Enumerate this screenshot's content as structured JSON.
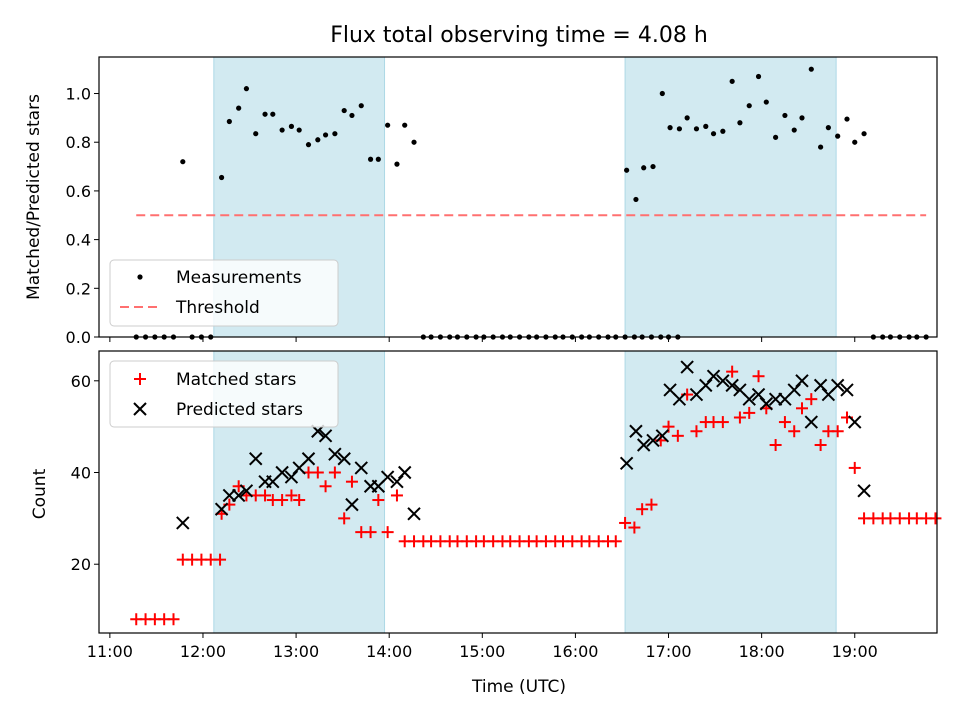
{
  "chart_data": [
    {
      "type": "scatter",
      "title": "Flux total observing time = 4.08 h",
      "xlabel": "",
      "ylabel": "Matched/Predicted stars",
      "xlim": [
        "10:53",
        "19:53"
      ],
      "ylim": [
        0,
        1.15
      ],
      "x_ticks": [
        "11:00",
        "12:00",
        "13:00",
        "14:00",
        "15:00",
        "16:00",
        "17:00",
        "18:00",
        "19:00"
      ],
      "y_ticks": [
        "0.0",
        "0.2",
        "0.4",
        "0.6",
        "0.8",
        "1.0"
      ],
      "grid": false,
      "legend_position": "lower-left",
      "shaded_intervals": [
        [
          "12:07",
          "13:57"
        ],
        [
          "16:32",
          "18:48"
        ]
      ],
      "series": [
        {
          "name": "Measurements",
          "marker": "dot",
          "color": "#000000",
          "points": [
            [
              "11:17",
              0
            ],
            [
              "11:23",
              0
            ],
            [
              "11:29",
              0
            ],
            [
              "11:35",
              0
            ],
            [
              "11:41",
              0
            ],
            [
              "11:47",
              0.72
            ],
            [
              "11:53",
              0
            ],
            [
              "11:59",
              0
            ],
            [
              "12:05",
              0
            ],
            [
              "12:12",
              0.655
            ],
            [
              "12:17",
              0.885
            ],
            [
              "12:23",
              0.94
            ],
            [
              "12:28",
              1.02
            ],
            [
              "12:34",
              0.835
            ],
            [
              "12:40",
              0.915
            ],
            [
              "12:45",
              0.915
            ],
            [
              "12:51",
              0.85
            ],
            [
              "12:57",
              0.865
            ],
            [
              "13:02",
              0.85
            ],
            [
              "13:08",
              0.79
            ],
            [
              "13:14",
              0.81
            ],
            [
              "13:19",
              0.83
            ],
            [
              "13:25",
              0.835
            ],
            [
              "13:31",
              0.93
            ],
            [
              "13:36",
              0.91
            ],
            [
              "13:42",
              0.95
            ],
            [
              "13:48",
              0.73
            ],
            [
              "13:53",
              0.73
            ],
            [
              "13:59",
              0.87
            ],
            [
              "14:05",
              0.71
            ],
            [
              "14:10",
              0.87
            ],
            [
              "14:16",
              0.8
            ],
            [
              "14:22",
              0
            ],
            [
              "14:27",
              0
            ],
            [
              "14:33",
              0
            ],
            [
              "14:39",
              0
            ],
            [
              "14:44",
              0
            ],
            [
              "14:50",
              0
            ],
            [
              "14:56",
              0
            ],
            [
              "15:01",
              0
            ],
            [
              "15:07",
              0
            ],
            [
              "15:13",
              0
            ],
            [
              "15:18",
              0
            ],
            [
              "15:24",
              0
            ],
            [
              "15:30",
              0
            ],
            [
              "15:35",
              0
            ],
            [
              "15:41",
              0
            ],
            [
              "15:47",
              0
            ],
            [
              "15:52",
              0
            ],
            [
              "15:58",
              0
            ],
            [
              "16:04",
              0
            ],
            [
              "16:09",
              0
            ],
            [
              "16:15",
              0
            ],
            [
              "16:21",
              0
            ],
            [
              "16:26",
              0
            ],
            [
              "16:32",
              0
            ],
            [
              "16:38",
              0
            ],
            [
              "16:43",
              0
            ],
            [
              "16:49",
              0
            ],
            [
              "16:55",
              0
            ],
            [
              "17:00",
              0
            ],
            [
              "17:06",
              0
            ],
            [
              "16:33",
              0.685
            ],
            [
              "16:39",
              0.565
            ],
            [
              "16:44",
              0.695
            ],
            [
              "16:50",
              0.7
            ],
            [
              "16:56",
              1.0
            ],
            [
              "17:01",
              0.86
            ],
            [
              "17:07",
              0.855
            ],
            [
              "17:12",
              0.9
            ],
            [
              "17:18",
              0.855
            ],
            [
              "17:24",
              0.865
            ],
            [
              "17:29",
              0.835
            ],
            [
              "17:35",
              0.845
            ],
            [
              "17:41",
              1.05
            ],
            [
              "17:46",
              0.88
            ],
            [
              "17:52",
              0.95
            ],
            [
              "17:58",
              1.07
            ],
            [
              "18:03",
              0.965
            ],
            [
              "18:09",
              0.82
            ],
            [
              "18:15",
              0.91
            ],
            [
              "18:21",
              0.85
            ],
            [
              "18:26",
              0.9
            ],
            [
              "18:32",
              1.1
            ],
            [
              "18:38",
              0.78
            ],
            [
              "18:43",
              0.86
            ],
            [
              "18:49",
              0.825
            ],
            [
              "18:55",
              0.895
            ],
            [
              "19:00",
              0.8
            ],
            [
              "19:06",
              0.835
            ],
            [
              "19:12",
              0
            ],
            [
              "19:18",
              0
            ],
            [
              "19:23",
              0
            ],
            [
              "19:29",
              0
            ],
            [
              "19:35",
              0
            ],
            [
              "19:40",
              0
            ],
            [
              "19:46",
              0
            ]
          ]
        },
        {
          "name": "Threshold",
          "marker": "dashed-line",
          "color": "#ff7070",
          "points": [
            [
              "11:17",
              0.5
            ],
            [
              "19:46",
              0.5
            ]
          ]
        }
      ]
    },
    {
      "type": "scatter",
      "title": "",
      "xlabel": "Time (UTC)",
      "ylabel": "Count",
      "xlim": [
        "10:53",
        "19:53"
      ],
      "ylim": [
        5,
        66.5
      ],
      "x_ticks": [
        "11:00",
        "12:00",
        "13:00",
        "14:00",
        "15:00",
        "16:00",
        "17:00",
        "18:00",
        "19:00"
      ],
      "y_ticks": [
        "20",
        "40",
        "60"
      ],
      "grid": false,
      "legend_position": "upper-left",
      "shaded_intervals": [
        [
          "12:07",
          "13:57"
        ],
        [
          "16:32",
          "18:48"
        ]
      ],
      "series": [
        {
          "name": "Matched stars",
          "marker": "plus",
          "color": "#ff0000",
          "points": [
            [
              "11:17",
              8
            ],
            [
              "11:23",
              8
            ],
            [
              "11:29",
              8
            ],
            [
              "11:35",
              8
            ],
            [
              "11:41",
              8
            ],
            [
              "11:47",
              21
            ],
            [
              "11:53",
              21
            ],
            [
              "11:59",
              21
            ],
            [
              "12:05",
              21
            ],
            [
              "12:11",
              21
            ],
            [
              "12:12",
              31
            ],
            [
              "12:17",
              33
            ],
            [
              "12:23",
              37
            ],
            [
              "12:28",
              35
            ],
            [
              "12:34",
              35
            ],
            [
              "12:40",
              35
            ],
            [
              "12:45",
              34
            ],
            [
              "12:51",
              34
            ],
            [
              "12:57",
              35
            ],
            [
              "13:02",
              34
            ],
            [
              "13:08",
              40
            ],
            [
              "13:14",
              40
            ],
            [
              "13:19",
              37
            ],
            [
              "13:25",
              40
            ],
            [
              "13:31",
              30
            ],
            [
              "13:36",
              38
            ],
            [
              "13:42",
              27
            ],
            [
              "13:48",
              27
            ],
            [
              "13:53",
              34
            ],
            [
              "13:59",
              27
            ],
            [
              "14:05",
              35
            ],
            [
              "14:10",
              25
            ],
            [
              "14:16",
              25
            ],
            [
              "14:22",
              25
            ],
            [
              "14:27",
              25
            ],
            [
              "14:33",
              25
            ],
            [
              "14:39",
              25
            ],
            [
              "14:44",
              25
            ],
            [
              "14:50",
              25
            ],
            [
              "14:56",
              25
            ],
            [
              "15:01",
              25
            ],
            [
              "15:07",
              25
            ],
            [
              "15:13",
              25
            ],
            [
              "15:18",
              25
            ],
            [
              "15:24",
              25
            ],
            [
              "15:30",
              25
            ],
            [
              "15:35",
              25
            ],
            [
              "15:41",
              25
            ],
            [
              "15:47",
              25
            ],
            [
              "15:52",
              25
            ],
            [
              "15:58",
              25
            ],
            [
              "16:04",
              25
            ],
            [
              "16:09",
              25
            ],
            [
              "16:15",
              25
            ],
            [
              "16:21",
              25
            ],
            [
              "16:26",
              25
            ],
            [
              "16:32",
              29
            ],
            [
              "16:38",
              28
            ],
            [
              "16:43",
              32
            ],
            [
              "16:49",
              33
            ],
            [
              "16:55",
              47
            ],
            [
              "17:00",
              50
            ],
            [
              "17:06",
              48
            ],
            [
              "17:12",
              57
            ],
            [
              "17:18",
              49
            ],
            [
              "17:24",
              51
            ],
            [
              "17:29",
              51
            ],
            [
              "17:35",
              51
            ],
            [
              "17:41",
              62
            ],
            [
              "17:46",
              52
            ],
            [
              "17:52",
              53
            ],
            [
              "17:58",
              61
            ],
            [
              "18:03",
              54
            ],
            [
              "18:09",
              46
            ],
            [
              "18:15",
              51
            ],
            [
              "18:21",
              49
            ],
            [
              "18:26",
              54
            ],
            [
              "18:32",
              56
            ],
            [
              "18:38",
              46
            ],
            [
              "18:43",
              49
            ],
            [
              "18:49",
              49
            ],
            [
              "18:55",
              52
            ],
            [
              "19:00",
              41
            ],
            [
              "19:06",
              30
            ],
            [
              "19:12",
              30
            ],
            [
              "19:18",
              30
            ],
            [
              "19:23",
              30
            ],
            [
              "19:29",
              30
            ],
            [
              "19:35",
              30
            ],
            [
              "19:40",
              30
            ],
            [
              "19:46",
              30
            ],
            [
              "19:52",
              30
            ]
          ]
        },
        {
          "name": "Predicted stars",
          "marker": "x",
          "color": "#000000",
          "points": [
            [
              "11:47",
              29
            ],
            [
              "12:12",
              32
            ],
            [
              "12:17",
              35
            ],
            [
              "12:23",
              35
            ],
            [
              "12:28",
              36
            ],
            [
              "12:34",
              43
            ],
            [
              "12:40",
              38
            ],
            [
              "12:45",
              38
            ],
            [
              "12:51",
              40
            ],
            [
              "12:57",
              39
            ],
            [
              "13:02",
              41
            ],
            [
              "13:08",
              43
            ],
            [
              "13:14",
              49
            ],
            [
              "13:19",
              48
            ],
            [
              "13:25",
              44
            ],
            [
              "13:31",
              43
            ],
            [
              "13:36",
              33
            ],
            [
              "13:42",
              41
            ],
            [
              "13:48",
              37
            ],
            [
              "13:53",
              37
            ],
            [
              "13:59",
              39
            ],
            [
              "14:05",
              38
            ],
            [
              "14:10",
              40
            ],
            [
              "14:16",
              31
            ],
            [
              "16:33",
              42
            ],
            [
              "16:39",
              49
            ],
            [
              "16:44",
              46
            ],
            [
              "16:50",
              47
            ],
            [
              "16:56",
              48
            ],
            [
              "17:01",
              58
            ],
            [
              "17:07",
              56
            ],
            [
              "17:12",
              63
            ],
            [
              "17:18",
              57
            ],
            [
              "17:24",
              59
            ],
            [
              "17:29",
              61
            ],
            [
              "17:35",
              60
            ],
            [
              "17:41",
              59
            ],
            [
              "17:46",
              58
            ],
            [
              "17:52",
              56
            ],
            [
              "17:58",
              57
            ],
            [
              "18:03",
              55
            ],
            [
              "18:09",
              56
            ],
            [
              "18:15",
              56
            ],
            [
              "18:21",
              58
            ],
            [
              "18:26",
              60
            ],
            [
              "18:32",
              51
            ],
            [
              "18:38",
              59
            ],
            [
              "18:43",
              57
            ],
            [
              "18:49",
              59
            ],
            [
              "18:55",
              58
            ],
            [
              "19:00",
              51
            ],
            [
              "19:06",
              36
            ]
          ]
        }
      ]
    }
  ],
  "colors": {
    "shade": "#add8e6",
    "threshold": "#ff7070",
    "matched": "#ff0000",
    "predicted": "#000000",
    "measurement": "#000000"
  }
}
